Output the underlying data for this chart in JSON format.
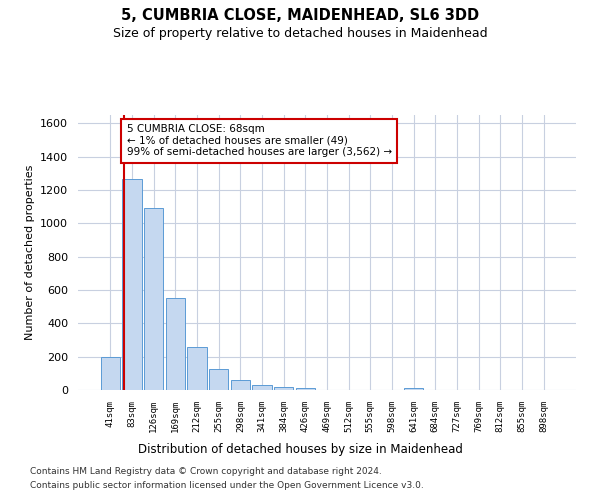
{
  "title": "5, CUMBRIA CLOSE, MAIDENHEAD, SL6 3DD",
  "subtitle": "Size of property relative to detached houses in Maidenhead",
  "xlabel": "Distribution of detached houses by size in Maidenhead",
  "ylabel": "Number of detached properties",
  "bar_color": "#c5d8f0",
  "bar_edge_color": "#5b9bd5",
  "grid_color": "#c8d0e0",
  "background_color": "#ffffff",
  "annotation_box_color": "#cc0000",
  "annotation_line1": "5 CUMBRIA CLOSE: 68sqm",
  "annotation_line2": "← 1% of detached houses are smaller (49)",
  "annotation_line3": "99% of semi-detached houses are larger (3,562) →",
  "property_line_color": "#cc0000",
  "categories": [
    "41sqm",
    "83sqm",
    "126sqm",
    "169sqm",
    "212sqm",
    "255sqm",
    "298sqm",
    "341sqm",
    "384sqm",
    "426sqm",
    "469sqm",
    "512sqm",
    "555sqm",
    "598sqm",
    "641sqm",
    "684sqm",
    "727sqm",
    "769sqm",
    "812sqm",
    "855sqm",
    "898sqm"
  ],
  "values": [
    197,
    1265,
    1095,
    555,
    260,
    125,
    60,
    30,
    20,
    13,
    0,
    0,
    0,
    0,
    13,
    0,
    0,
    0,
    0,
    0,
    0
  ],
  "ylim": [
    0,
    1650
  ],
  "yticks": [
    0,
    200,
    400,
    600,
    800,
    1000,
    1200,
    1400,
    1600
  ],
  "footer_line1": "Contains HM Land Registry data © Crown copyright and database right 2024.",
  "footer_line2": "Contains public sector information licensed under the Open Government Licence v3.0."
}
